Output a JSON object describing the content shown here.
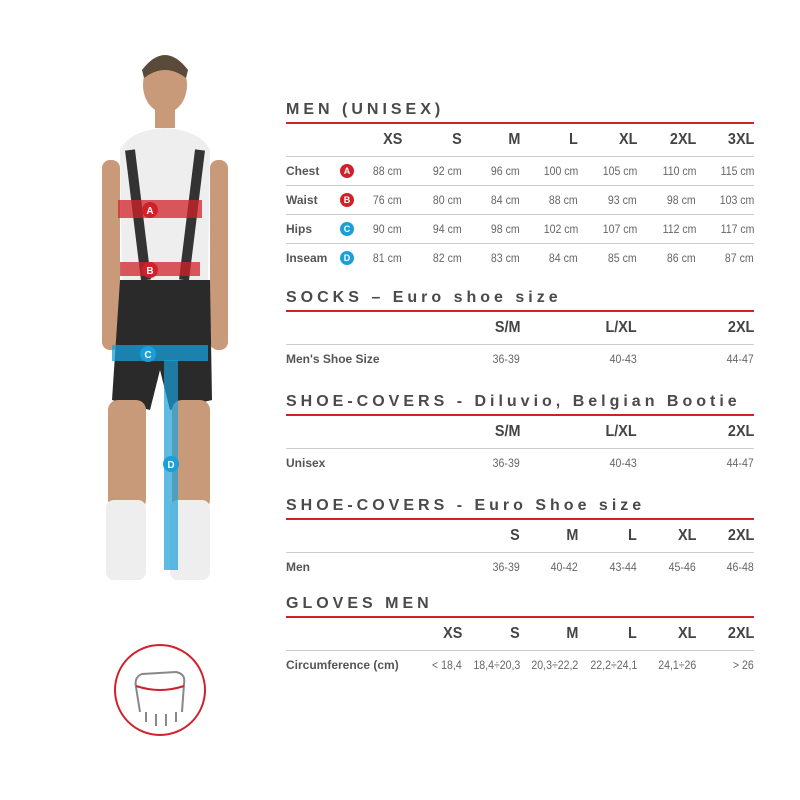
{
  "colors": {
    "accent": "#d0212b",
    "blue": "#1a9fd9"
  },
  "figure": {
    "markers": [
      "A",
      "B",
      "C",
      "D"
    ],
    "hand_icon": "hand-circumference-icon"
  },
  "sections": [
    {
      "title": "MEN (UNISEX)",
      "headers": [
        "XS",
        "S",
        "M",
        "L",
        "XL",
        "2XL",
        "3XL"
      ],
      "rows": [
        {
          "label": "Chest",
          "badge": "A",
          "badge_color": "#d0212b",
          "values": [
            "88 cm",
            "92 cm",
            "96 cm",
            "100 cm",
            "105 cm",
            "110 cm",
            "115 cm"
          ]
        },
        {
          "label": "Waist",
          "badge": "B",
          "badge_color": "#d0212b",
          "values": [
            "76 cm",
            "80 cm",
            "84 cm",
            "88 cm",
            "93 cm",
            "98 cm",
            "103 cm"
          ]
        },
        {
          "label": "Hips",
          "badge": "C",
          "badge_color": "#1a9fd9",
          "values": [
            "90 cm",
            "94 cm",
            "98 cm",
            "102 cm",
            "107 cm",
            "112 cm",
            "117 cm"
          ]
        },
        {
          "label": "Inseam",
          "badge": "D",
          "badge_color": "#1a9fd9",
          "values": [
            "81 cm",
            "82 cm",
            "83 cm",
            "84 cm",
            "85 cm",
            "86 cm",
            "87 cm"
          ]
        }
      ]
    },
    {
      "title": "SOCKS – Euro shoe size",
      "headers": [
        "S/M",
        "L/XL",
        "2XL"
      ],
      "rows": [
        {
          "label": "Men's Shoe Size",
          "values": [
            "36-39",
            "40-43",
            "44-47"
          ]
        }
      ]
    },
    {
      "title": "SHOE-COVERS - Diluvio, Belgian Bootie",
      "headers": [
        "S/M",
        "L/XL",
        "2XL"
      ],
      "rows": [
        {
          "label": "Unisex",
          "values": [
            "36-39",
            "40-43",
            "44-47"
          ]
        }
      ]
    },
    {
      "title": "SHOE-COVERS - Euro Shoe size",
      "headers": [
        "S",
        "M",
        "L",
        "XL",
        "2XL"
      ],
      "rows": [
        {
          "label": "Men",
          "values": [
            "36-39",
            "40-42",
            "43-44",
            "45-46",
            "46-48"
          ]
        }
      ]
    },
    {
      "title": "GLOVES MEN",
      "headers": [
        "XS",
        "S",
        "M",
        "L",
        "XL",
        "2XL"
      ],
      "rows": [
        {
          "label": "Circumference (cm)",
          "values": [
            "< 18,4",
            "18,4÷20,3",
            "20,3÷22,2",
            "22,2÷24,1",
            "24,1÷26",
            "> 26"
          ]
        }
      ]
    }
  ]
}
